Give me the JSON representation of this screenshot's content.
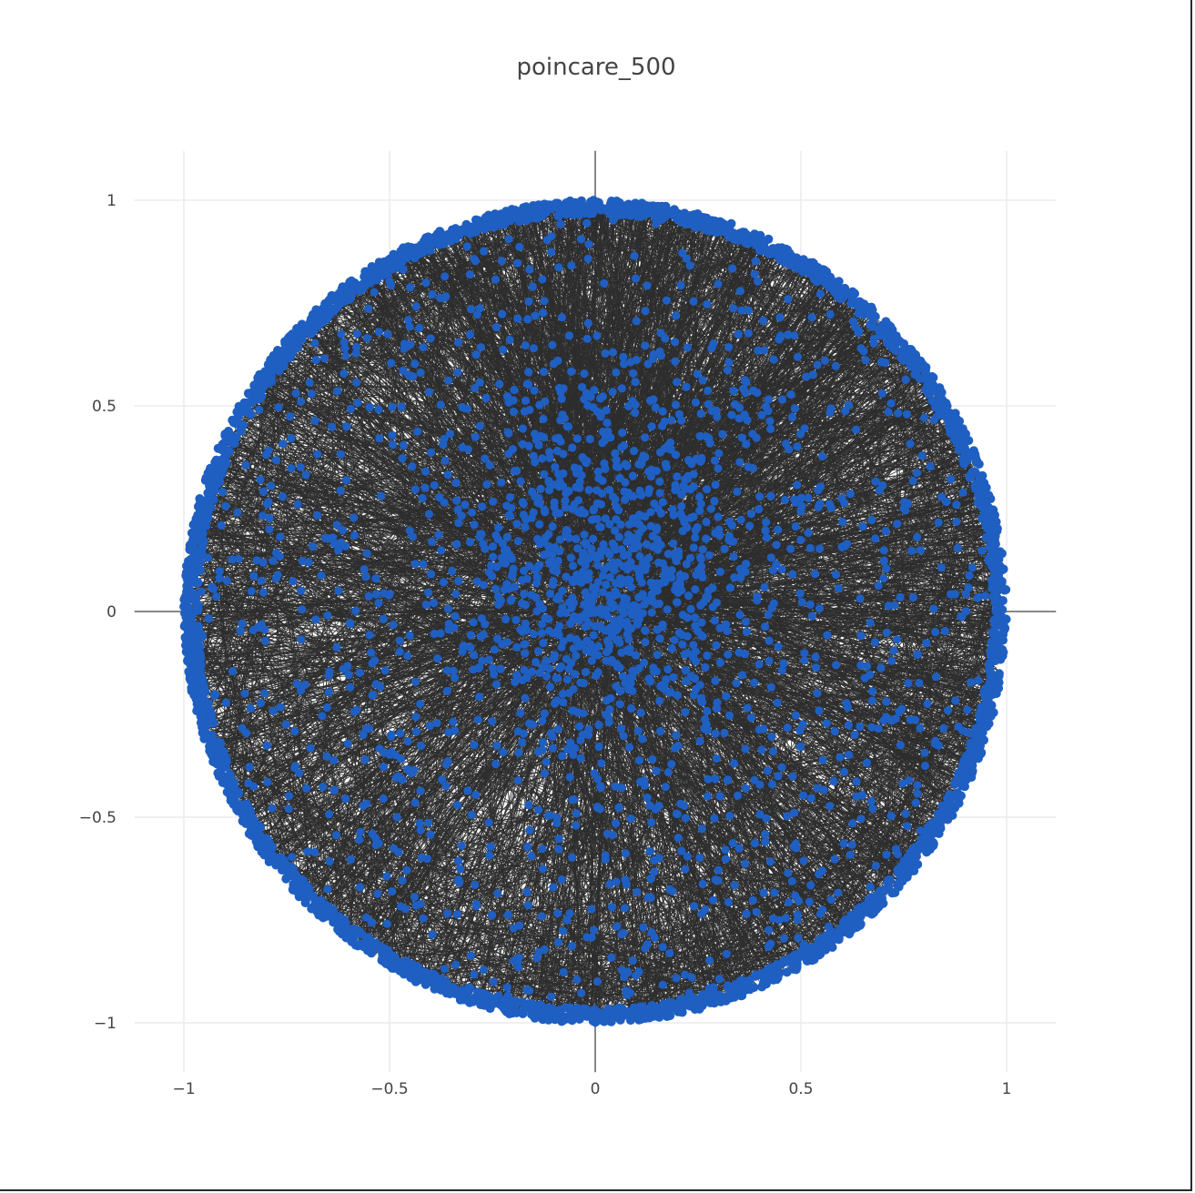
{
  "chart_data": {
    "type": "scatter",
    "title": "poincare_500",
    "xlabel": "",
    "ylabel": "",
    "xlim": [
      -1.12,
      1.12
    ],
    "ylim": [
      -1.12,
      1.12
    ],
    "x_ticks": [
      -1,
      -0.5,
      0,
      0.5,
      1
    ],
    "x_tick_labels": [
      "−1",
      "−0.5",
      "0",
      "0.5",
      "1"
    ],
    "y_ticks": [
      1,
      0.5,
      0,
      -0.5,
      -1
    ],
    "y_tick_labels": [
      "1",
      "0.5",
      "0",
      "−0.5",
      "−1"
    ],
    "grid": true,
    "zero_lines": true,
    "legend": "none",
    "disk_radius": 1,
    "series": [
      {
        "mode": "lines",
        "color": "#2d2d2d"
      },
      {
        "mode": "markers",
        "color": "#1f5fc2"
      }
    ]
  }
}
